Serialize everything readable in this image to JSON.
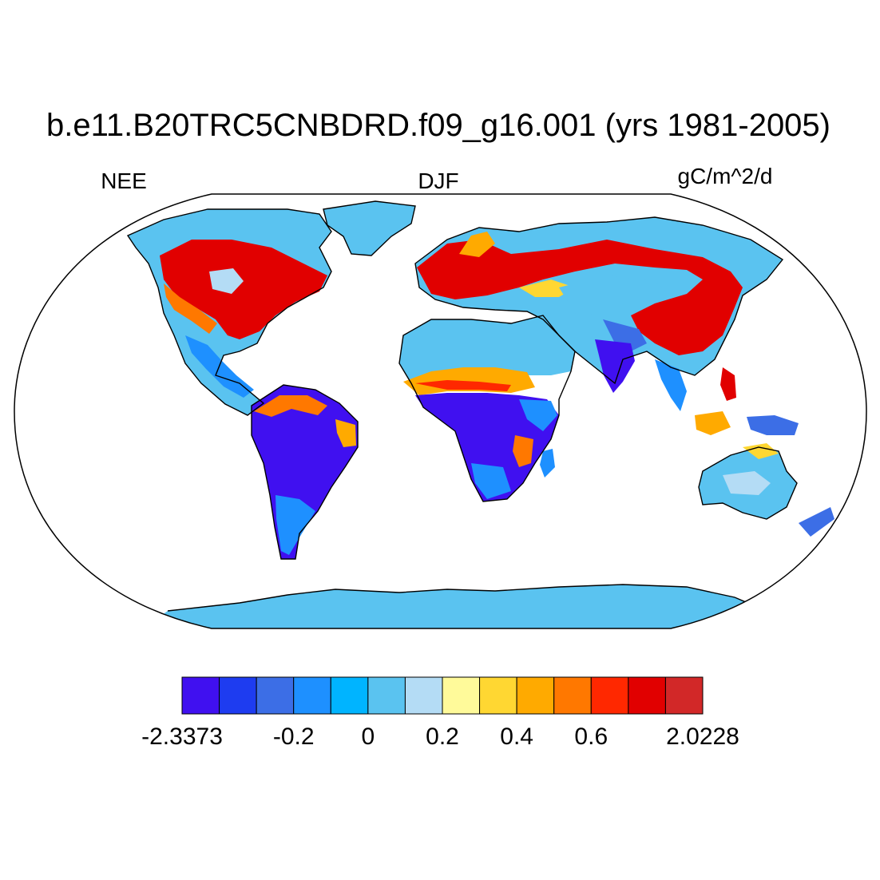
{
  "title": "b.e11.B20TRC5CNBDRD.f09_g16.001 (yrs 1981-2005)",
  "left_label": "NEE",
  "center_label": "DJF",
  "right_label": "gC/m^2/d",
  "projection": "Robinson",
  "colorbar": {
    "colors": [
      "#4010f0",
      "#1e3cf0",
      "#3c6ee6",
      "#1e90ff",
      "#00b4ff",
      "#5ac3f0",
      "#b4dcf5",
      "#fffa9a",
      "#ffd732",
      "#ffaa00",
      "#ff7800",
      "#ff2800",
      "#e10000",
      "#d22828"
    ],
    "tick_labels": [
      "-2.3373",
      "-0.2",
      "0",
      "0.2",
      "0.4",
      "0.6",
      "2.0228"
    ],
    "min": -2.3373,
    "max": 2.0228
  },
  "regions": [
    {
      "name": "North America",
      "class": "mixed warm/cool"
    },
    {
      "name": "South America",
      "class": "strong sink"
    },
    {
      "name": "Europe",
      "class": "source"
    },
    {
      "name": "Africa",
      "class": "mixed"
    },
    {
      "name": "Asia",
      "class": "source"
    },
    {
      "name": "Australia",
      "class": "near zero"
    },
    {
      "name": "Antarctica",
      "class": "near zero"
    },
    {
      "name": "Greenland",
      "class": "near zero"
    }
  ]
}
